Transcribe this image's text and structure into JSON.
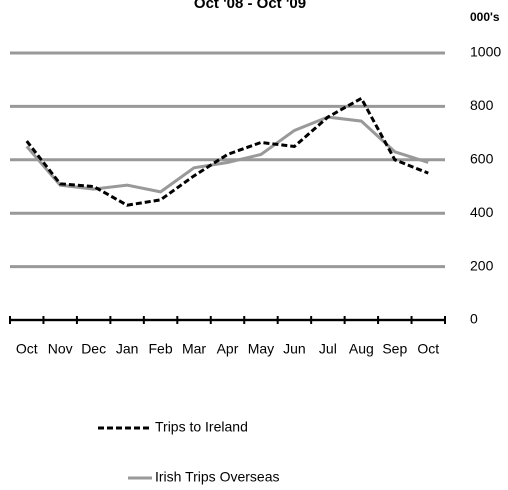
{
  "chart_data": {
    "type": "line",
    "title": "Oct '08 - Oct '09",
    "y_axis_label": "000's",
    "categories": [
      "Oct",
      "Nov",
      "Dec",
      "Jan",
      "Feb",
      "Mar",
      "Apr",
      "May",
      "Jun",
      "Jul",
      "Aug",
      "Sep",
      "Oct"
    ],
    "series": [
      {
        "name": "Trips to Ireland",
        "color": "#000000",
        "dashed": true,
        "values": [
          670,
          510,
          500,
          430,
          450,
          540,
          620,
          665,
          650,
          760,
          830,
          600,
          550
        ]
      },
      {
        "name": "Irish Trips Overseas",
        "color": "#999999",
        "dashed": false,
        "values": [
          650,
          505,
          490,
          505,
          480,
          570,
          590,
          620,
          710,
          760,
          745,
          630,
          590
        ]
      }
    ],
    "ylim": [
      0,
      1000
    ],
    "yticks": [
      0,
      200,
      400,
      600,
      800,
      1000
    ],
    "grid": true,
    "legend": "bottom"
  }
}
